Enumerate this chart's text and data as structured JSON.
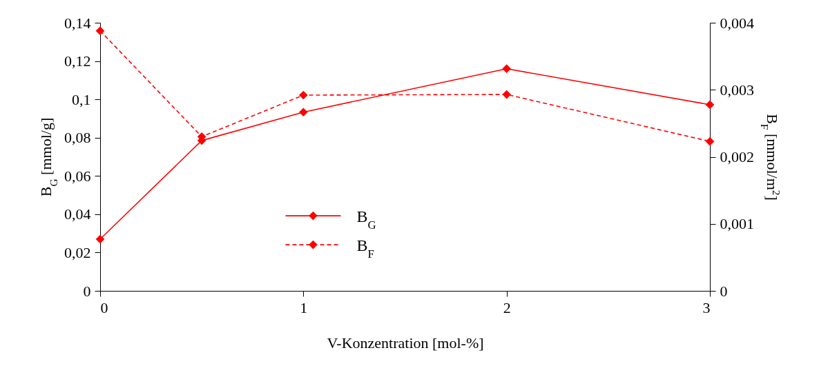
{
  "chart_data": {
    "type": "line",
    "xlabel": "V-Konzentration [mol-%]",
    "ylabel": "B$_{G}$ [mmol/g]",
    "y2label": "B$_{F}$ [mmol/m$^{2}$]",
    "x": [
      0,
      0.5,
      1,
      2,
      3
    ],
    "series": [
      {
        "name": "B$_{G}$",
        "color": "#ff0000",
        "line_style": "solid",
        "values": [
          0.027,
          0.0785,
          0.0933,
          0.116,
          0.0972
        ]
      },
      {
        "name": "B$_{F}$",
        "color": "#ff0000",
        "line_style": "dashed",
        "axis": "y2",
        "values": [
          0.00388,
          0.0023,
          0.00292,
          0.00293,
          0.00223
        ]
      }
    ],
    "xlim": [
      0,
      3
    ],
    "xticks": [
      0,
      1,
      2,
      3
    ],
    "ylim": [
      0,
      0.14
    ],
    "yticks": [
      0,
      {
        "value": 0.02,
        "label": "0,02"
      },
      {
        "value": 0.04,
        "label": "0,04"
      },
      {
        "value": 0.06,
        "label": "0,06"
      },
      {
        "value": 0.08,
        "label": "0,08"
      },
      {
        "value": 0.1,
        "label": "0,1"
      },
      {
        "value": 0.12,
        "label": "0,12"
      },
      {
        "value": 0.14,
        "label": "0,14"
      }
    ],
    "y2lim": [
      0,
      0.004
    ],
    "y2ticks": [
      0,
      {
        "value": 0.001,
        "label": "0,001"
      },
      {
        "value": 0.002,
        "label": "0,002"
      },
      {
        "value": 0.003,
        "label": "0,003"
      },
      {
        "value": 0.004,
        "label": "0,004"
      }
    ],
    "marker": "diamond",
    "grid": false,
    "legend": "bottom"
  }
}
